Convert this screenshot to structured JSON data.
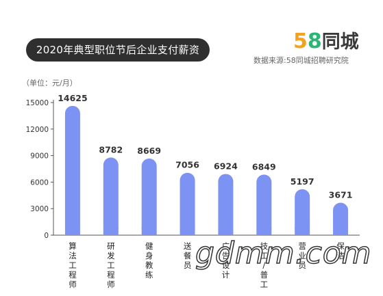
{
  "header": {
    "title": "2020年典型职位节后企业支付薪资",
    "logo_digit5": "5",
    "logo_digit8": "8",
    "logo_text": "同城",
    "source": "数据来源:58同城招聘研究院"
  },
  "watermark": "gdmm.com",
  "colors": {
    "bar": "#7c93f3",
    "title_bg": "#2f2f2f",
    "logo_5": "#f4a21c",
    "logo_8": "#2bb673"
  },
  "chart_data": {
    "type": "bar",
    "title": "2020年典型职位节后企业支付薪资",
    "ylabel": "（单位：元/月）",
    "ylim": [
      0,
      15000
    ],
    "yticks": [
      "0",
      "3000",
      "6000",
      "9000",
      "12000",
      "15000"
    ],
    "categories": [
      "算法工程师",
      "研发工程师",
      "健身教练",
      "送餐员",
      "广告设计",
      "技工/普工",
      "营业员",
      "保洁"
    ],
    "values": [
      14625,
      8782,
      8669,
      7056,
      6924,
      6849,
      5197,
      3671
    ],
    "value_labels": [
      "14625",
      "8782",
      "8669",
      "7056",
      "6924",
      "6849",
      "5197",
      "3671"
    ],
    "grid": false,
    "legend": "none"
  }
}
